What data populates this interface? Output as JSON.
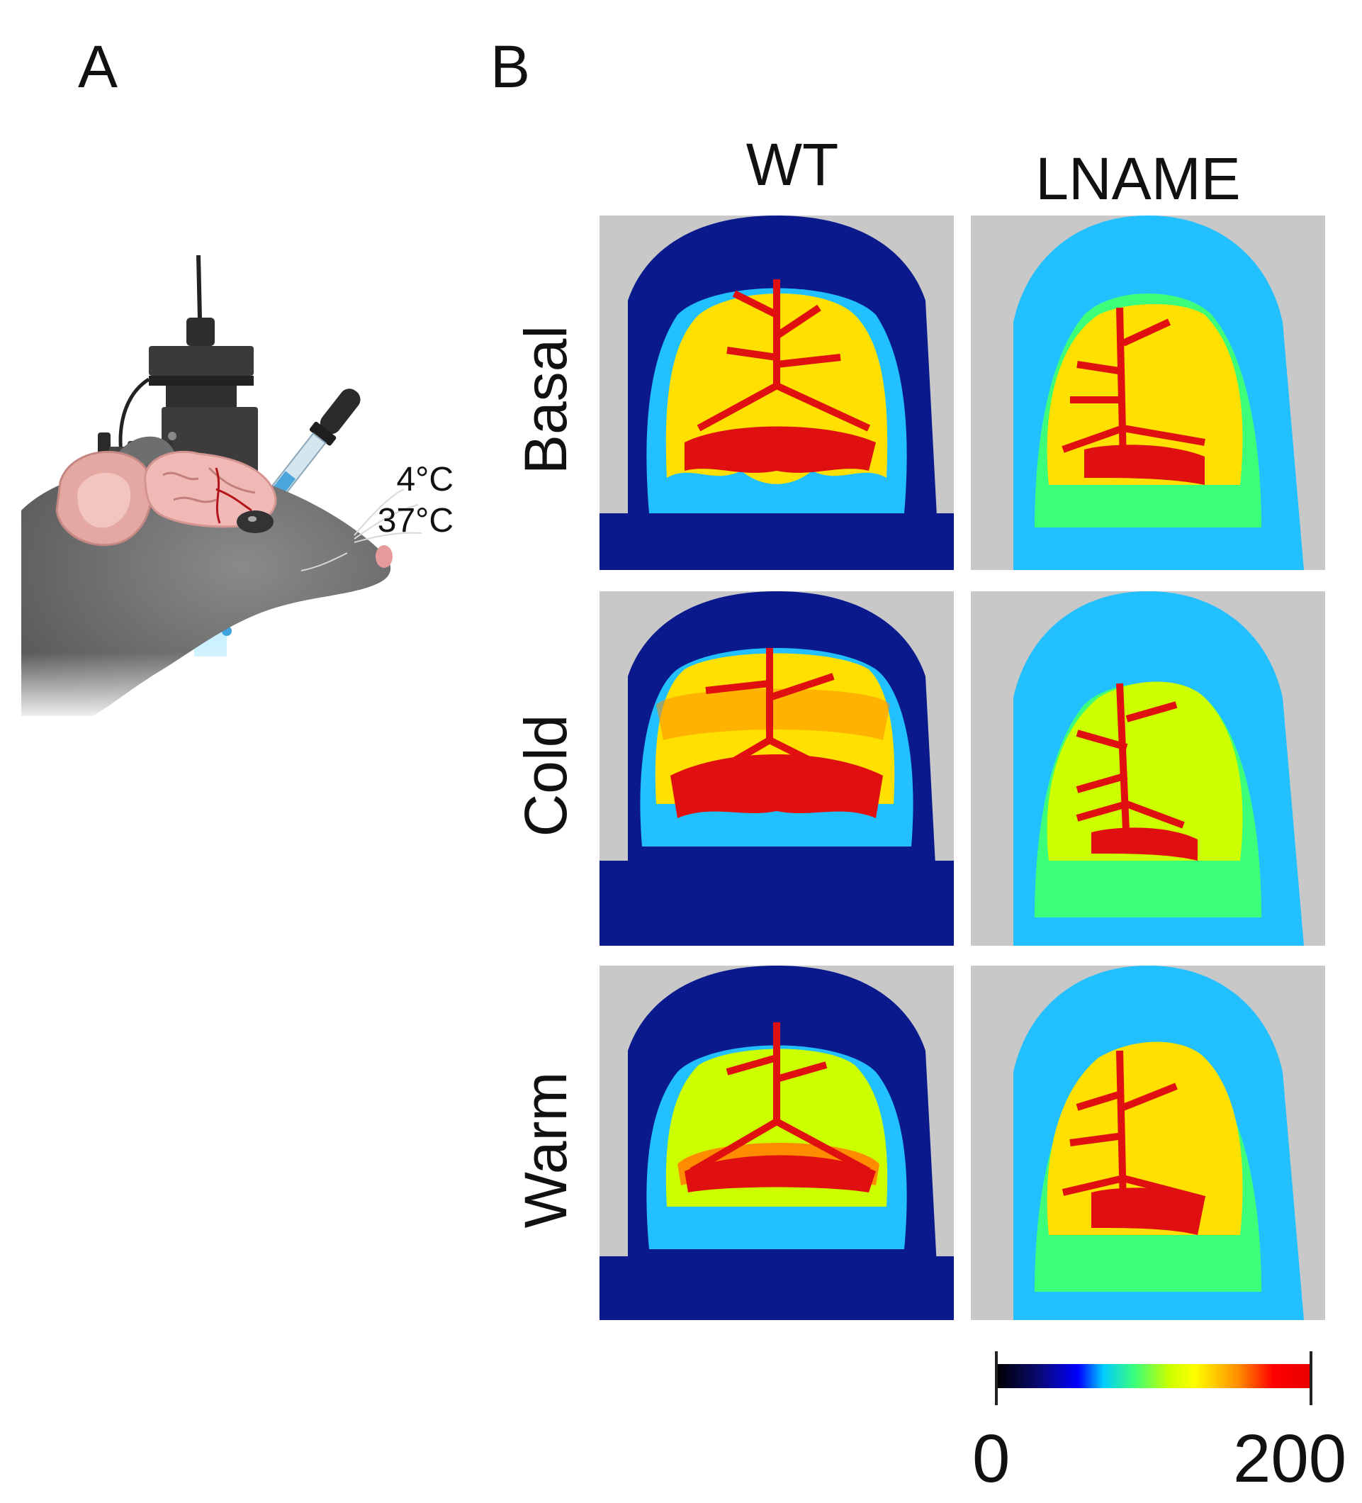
{
  "panels": {
    "a": "A",
    "b": "B"
  },
  "setup": {
    "temp_cold": "4°C",
    "temp_warm": "37°C"
  },
  "columns": [
    "WT",
    "LNAME"
  ],
  "rows": [
    "Basal",
    "Cold",
    "Warm"
  ],
  "colorbar": {
    "min_label": "0",
    "max_label": "200",
    "colors": [
      "#000000",
      "#0000ff",
      "#00ccff",
      "#3cff7a",
      "#ffff00",
      "#ff8c00",
      "#ff0000"
    ]
  },
  "colors": {
    "background_gray": "#c8c8c8",
    "low_flow": "#0a1a8c",
    "mid_flow": "#22c0ff",
    "high_flow": "#ffe000",
    "vessel": "#e01010"
  }
}
